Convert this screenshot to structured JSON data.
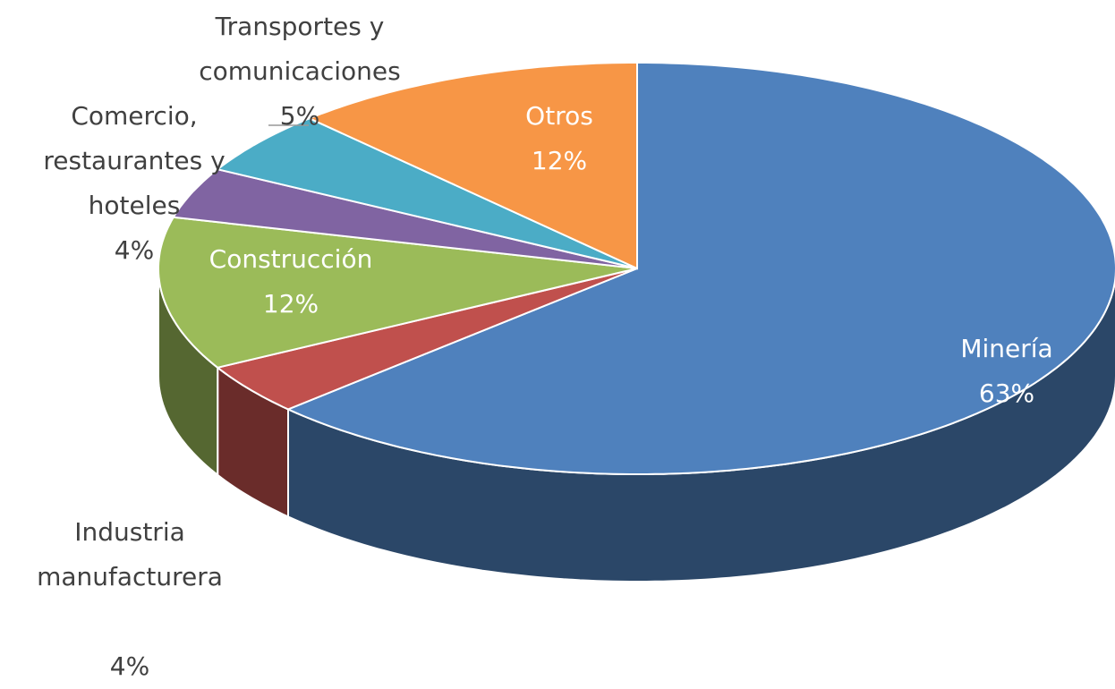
{
  "chart_data": {
    "type": "pie",
    "categories": [
      "Minería",
      "Industria manufacturera",
      "Construcción",
      "Comercio, restaurantes y hoteles",
      "Transportes y comunicaciones",
      "Otros"
    ],
    "values": [
      63,
      4,
      12,
      4,
      5,
      12
    ],
    "value_labels": [
      "63%",
      "4%",
      "12%",
      "4%",
      "5%",
      "12%"
    ],
    "colors": [
      "#4f81bd",
      "#c0504d",
      "#9bbb59",
      "#8064a2",
      "#4bacc6",
      "#f79646"
    ]
  }
}
